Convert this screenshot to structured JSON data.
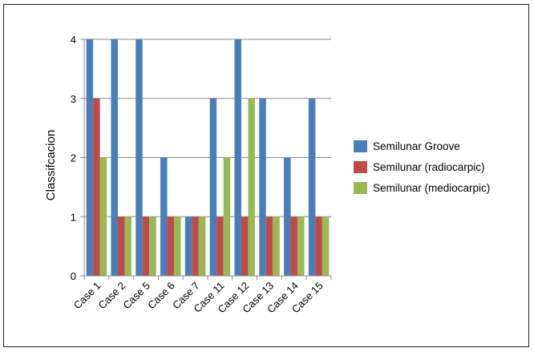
{
  "chart_data": {
    "type": "bar",
    "ylabel": "Classifcacion",
    "xlabel": "",
    "title": "",
    "categories": [
      "Case 1",
      "Case 2",
      "Case 5",
      "Case 6",
      "Case 7",
      "Case 11",
      "Case 12",
      "Case 13",
      "Case 14",
      "Case 15"
    ],
    "ylim": [
      0,
      4
    ],
    "yticks": [
      "0",
      "1",
      "2",
      "3",
      "4"
    ],
    "grid": true,
    "legend_position": "right",
    "series": [
      {
        "name": "Semilunar Groove",
        "color": "#4a7ebb",
        "values": [
          4,
          4,
          4,
          2,
          1,
          3,
          4,
          3,
          2,
          3
        ]
      },
      {
        "name": "Semilunar (radiocarpic)",
        "color": "#be4b48",
        "values": [
          3,
          1,
          1,
          1,
          1,
          1,
          1,
          1,
          1,
          1
        ]
      },
      {
        "name": "Semilunar (mediocarpic)",
        "color": "#98b954",
        "values": [
          2,
          1,
          1,
          1,
          1,
          2,
          3,
          1,
          1,
          1
        ]
      }
    ]
  }
}
